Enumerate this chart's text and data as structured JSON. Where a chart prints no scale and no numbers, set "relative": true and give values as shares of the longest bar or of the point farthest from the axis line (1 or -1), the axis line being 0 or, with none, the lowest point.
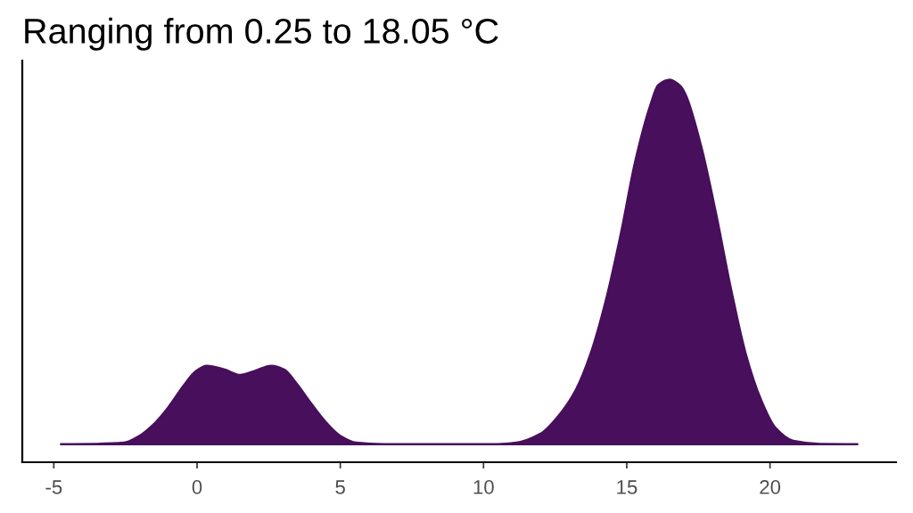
{
  "chart_data": {
    "type": "area",
    "title": "Ranging from 0.25 to 18.05 °C",
    "x": [
      -4.75,
      -3.5,
      -2.55,
      -2.03,
      -1.53,
      -1.0,
      -0.47,
      -0.06,
      0.34,
      0.97,
      1.5,
      2.02,
      2.59,
      3.05,
      3.46,
      3.99,
      4.52,
      5.02,
      5.55,
      6.5,
      10.5,
      11.15,
      11.98,
      12.71,
      13.23,
      13.74,
      14.27,
      14.79,
      15.3,
      15.83,
      16.1,
      16.5,
      16.9,
      17.07,
      17.59,
      18.1,
      18.63,
      19.15,
      19.66,
      20.19,
      20.81,
      21.74,
      23.05
    ],
    "values": [
      0.047,
      0.048,
      0.051,
      0.068,
      0.098,
      0.144,
      0.2,
      0.237,
      0.252,
      0.242,
      0.228,
      0.239,
      0.252,
      0.242,
      0.207,
      0.153,
      0.103,
      0.068,
      0.051,
      0.047,
      0.047,
      0.051,
      0.074,
      0.13,
      0.19,
      0.284,
      0.423,
      0.596,
      0.788,
      0.935,
      0.986,
      1.0,
      0.981,
      0.958,
      0.828,
      0.656,
      0.456,
      0.284,
      0.168,
      0.09,
      0.056,
      0.048,
      0.047
    ],
    "color": "#480f5c",
    "relative": true,
    "xlim": [
      -6.1,
      24.4
    ],
    "xticks": [
      -5,
      0,
      5,
      10,
      15,
      20
    ]
  }
}
